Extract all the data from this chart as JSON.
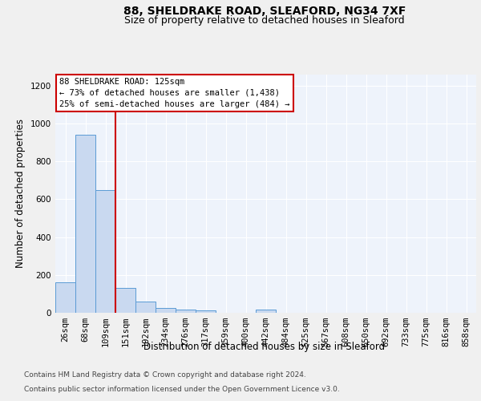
{
  "title_line1": "88, SHELDRAKE ROAD, SLEAFORD, NG34 7XF",
  "title_line2": "Size of property relative to detached houses in Sleaford",
  "xlabel": "Distribution of detached houses by size in Sleaford",
  "ylabel": "Number of detached properties",
  "categories": [
    "26sqm",
    "68sqm",
    "109sqm",
    "151sqm",
    "192sqm",
    "234sqm",
    "276sqm",
    "317sqm",
    "359sqm",
    "400sqm",
    "442sqm",
    "484sqm",
    "525sqm",
    "567sqm",
    "608sqm",
    "650sqm",
    "692sqm",
    "733sqm",
    "775sqm",
    "816sqm",
    "858sqm"
  ],
  "values": [
    160,
    940,
    650,
    130,
    60,
    27,
    15,
    12,
    0,
    0,
    15,
    0,
    0,
    0,
    0,
    0,
    0,
    0,
    0,
    0,
    0
  ],
  "bar_color": "#c9d9f0",
  "bar_edge_color": "#5b9bd5",
  "red_line_x": 2.5,
  "annotation_title": "88 SHELDRAKE ROAD: 125sqm",
  "annotation_line2": "← 73% of detached houses are smaller (1,438)",
  "annotation_line3": "25% of semi-detached houses are larger (484) →",
  "annotation_box_color": "#ffffff",
  "annotation_box_edge": "#cc0000",
  "red_line_color": "#cc0000",
  "ylim": [
    0,
    1260
  ],
  "yticks": [
    0,
    200,
    400,
    600,
    800,
    1000,
    1200
  ],
  "footer_line1": "Contains HM Land Registry data © Crown copyright and database right 2024.",
  "footer_line2": "Contains public sector information licensed under the Open Government Licence v3.0.",
  "background_color": "#eef3fb",
  "grid_color": "#ffffff",
  "fig_background": "#f0f0f0",
  "title_fontsize": 10,
  "subtitle_fontsize": 9,
  "axis_label_fontsize": 8.5,
  "tick_fontsize": 7.5,
  "footer_fontsize": 6.5
}
